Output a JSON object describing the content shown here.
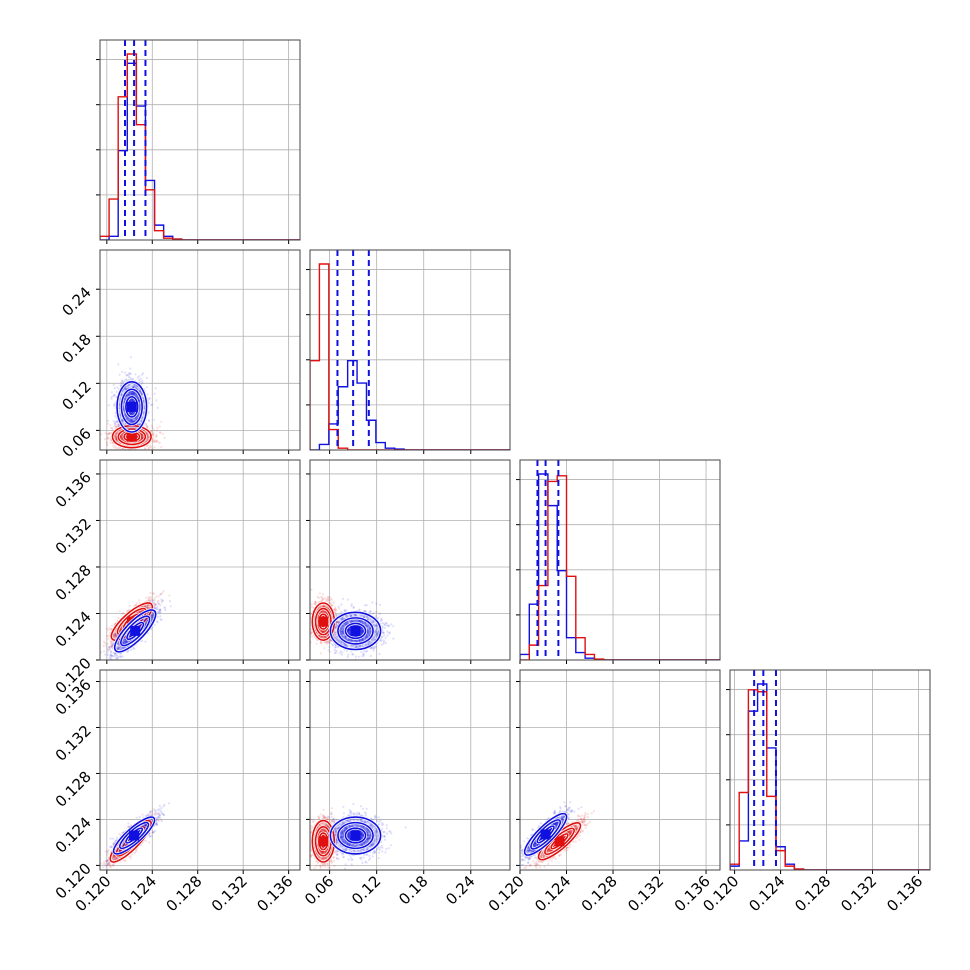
{
  "chart_data": {
    "type": "corner",
    "title": "",
    "grid": true,
    "colors": {
      "series_a": "#1010e0",
      "series_b": "#e01010",
      "quantile_lines": "#1010e0"
    },
    "parameters": [
      {
        "ticks": [
          0.12,
          0.124,
          0.128,
          0.132,
          0.136
        ],
        "tick_labels": [
          "0.120",
          "0.124",
          "0.128",
          "0.132",
          "0.136"
        ],
        "range": [
          0.1194,
          0.137
        ]
      },
      {
        "ticks": [
          0.06,
          0.12,
          0.18,
          0.24
        ],
        "tick_labels": [
          "0.06",
          "0.12",
          "0.18",
          "0.24"
        ],
        "range": [
          0.035,
          0.29
        ]
      },
      {
        "ticks": [
          0.12,
          0.124,
          0.128,
          0.132,
          0.136
        ],
        "tick_labels": [
          "0.120",
          "0.124",
          "0.128",
          "0.132",
          "0.136"
        ],
        "range": [
          0.12,
          0.1372
        ]
      },
      {
        "ticks": [
          0.12,
          0.124,
          0.128,
          0.132,
          0.136
        ],
        "tick_labels": [
          "0.120",
          "0.124",
          "0.128",
          "0.132",
          "0.136"
        ],
        "range": [
          0.1196,
          0.137
        ]
      }
    ],
    "histograms": [
      {
        "param": 0,
        "quantiles": [
          0.1216,
          0.1224,
          0.1234
        ],
        "bin_edges": [
          0.1194,
          0.1202,
          0.121,
          0.1218,
          0.1226,
          0.1234,
          0.1242,
          0.125,
          0.1258,
          0.1266,
          0.1274
        ],
        "series": [
          {
            "color": "blue",
            "counts": [
              0,
              0.02,
              0.48,
              0.95,
              0.72,
              0.32,
              0.08,
              0.02,
              0.005,
              0
            ]
          },
          {
            "color": "red",
            "counts": [
              0.02,
              0.22,
              0.77,
              1.0,
              0.62,
              0.27,
              0.05,
              0.01,
              0.005,
              0
            ]
          }
        ]
      },
      {
        "param": 1,
        "quantiles": [
          0.07,
          0.09,
          0.11
        ],
        "bin_edges": [
          0.035,
          0.047,
          0.059,
          0.071,
          0.083,
          0.095,
          0.107,
          0.119,
          0.131,
          0.143,
          0.155,
          0.167
        ],
        "series": [
          {
            "color": "blue",
            "counts": [
              0,
              0.03,
              0.14,
              0.34,
              0.48,
              0.36,
              0.16,
              0.04,
              0.01,
              0.005,
              0
            ]
          },
          {
            "color": "red",
            "counts": [
              0.48,
              1.0,
              0.11,
              0.01,
              0,
              0,
              0,
              0,
              0,
              0,
              0
            ]
          }
        ]
      },
      {
        "param": 2,
        "quantiles": [
          0.1215,
          0.1222,
          0.1233
        ],
        "bin_edges": [
          0.12,
          0.1208,
          0.1216,
          0.1224,
          0.1232,
          0.124,
          0.1248,
          0.1256,
          0.1264,
          0.1272,
          0.128
        ],
        "series": [
          {
            "color": "blue",
            "counts": [
              0.03,
              0.3,
              1.0,
              0.83,
              0.48,
              0.12,
              0.04,
              0.01,
              0,
              0
            ]
          },
          {
            "color": "red",
            "counts": [
              0,
              0.08,
              0.4,
              0.96,
              0.99,
              0.45,
              0.12,
              0.03,
              0.005,
              0
            ]
          }
        ]
      },
      {
        "param": 3,
        "quantiles": [
          0.1217,
          0.1225,
          0.1236
        ],
        "bin_edges": [
          0.1196,
          0.1204,
          0.1212,
          0.122,
          0.1228,
          0.1236,
          0.1244,
          0.1252,
          0.126,
          0.1268,
          0.1276
        ],
        "series": [
          {
            "color": "blue",
            "counts": [
              0.02,
              0.15,
              0.82,
              0.96,
              0.63,
              0.12,
              0.03,
              0.005,
              0,
              0
            ]
          },
          {
            "color": "red",
            "counts": [
              0.03,
              0.4,
              0.93,
              0.92,
              0.38,
              0.1,
              0.02,
              0.005,
              0,
              0
            ]
          }
        ]
      }
    ],
    "pairs": [
      {
        "x_param": 0,
        "y_param": 1,
        "rho": 0,
        "series": [
          {
            "color": "blue",
            "mean": [
              0.1222,
              0.09
            ],
            "sd": [
              0.00065,
              0.016
            ]
          },
          {
            "color": "red",
            "mean": [
              0.1222,
              0.052
            ],
            "sd": [
              0.00085,
              0.007
            ]
          }
        ]
      },
      {
        "x_param": 0,
        "y_param": 2,
        "rho": 0.8,
        "series": [
          {
            "color": "blue",
            "mean": [
              0.1225,
              0.1225
            ],
            "sd": [
              0.0009,
              0.0009
            ]
          },
          {
            "color": "red",
            "mean": [
              0.1222,
              0.1233
            ],
            "sd": [
              0.0009,
              0.0008
            ]
          }
        ]
      },
      {
        "x_param": 1,
        "y_param": 2,
        "rho": 0,
        "series": [
          {
            "color": "blue",
            "mean": [
              0.093,
              0.1225
            ],
            "sd": [
              0.016,
              0.0008
            ]
          },
          {
            "color": "red",
            "mean": [
              0.052,
              0.1233
            ],
            "sd": [
              0.007,
              0.0008
            ]
          }
        ]
      },
      {
        "x_param": 0,
        "y_param": 3,
        "rho": 0.85,
        "series": [
          {
            "color": "blue",
            "mean": [
              0.1224,
              0.1226
            ],
            "sd": [
              0.0009,
              0.0008
            ]
          },
          {
            "color": "red",
            "mean": [
              0.1221,
              0.1221
            ],
            "sd": [
              0.0009,
              0.0009
            ]
          }
        ]
      },
      {
        "x_param": 1,
        "y_param": 3,
        "rho": 0,
        "series": [
          {
            "color": "blue",
            "mean": [
              0.093,
              0.1226
            ],
            "sd": [
              0.016,
              0.0008
            ]
          },
          {
            "color": "red",
            "mean": [
              0.052,
              0.1221
            ],
            "sd": [
              0.007,
              0.0009
            ]
          }
        ]
      },
      {
        "x_param": 2,
        "y_param": 3,
        "rho": 0.85,
        "series": [
          {
            "color": "blue",
            "mean": [
              0.1222,
              0.1227
            ],
            "sd": [
              0.0009,
              0.0009
            ]
          },
          {
            "color": "red",
            "mean": [
              0.1234,
              0.1221
            ],
            "sd": [
              0.0009,
              0.0008
            ]
          }
        ]
      }
    ]
  }
}
